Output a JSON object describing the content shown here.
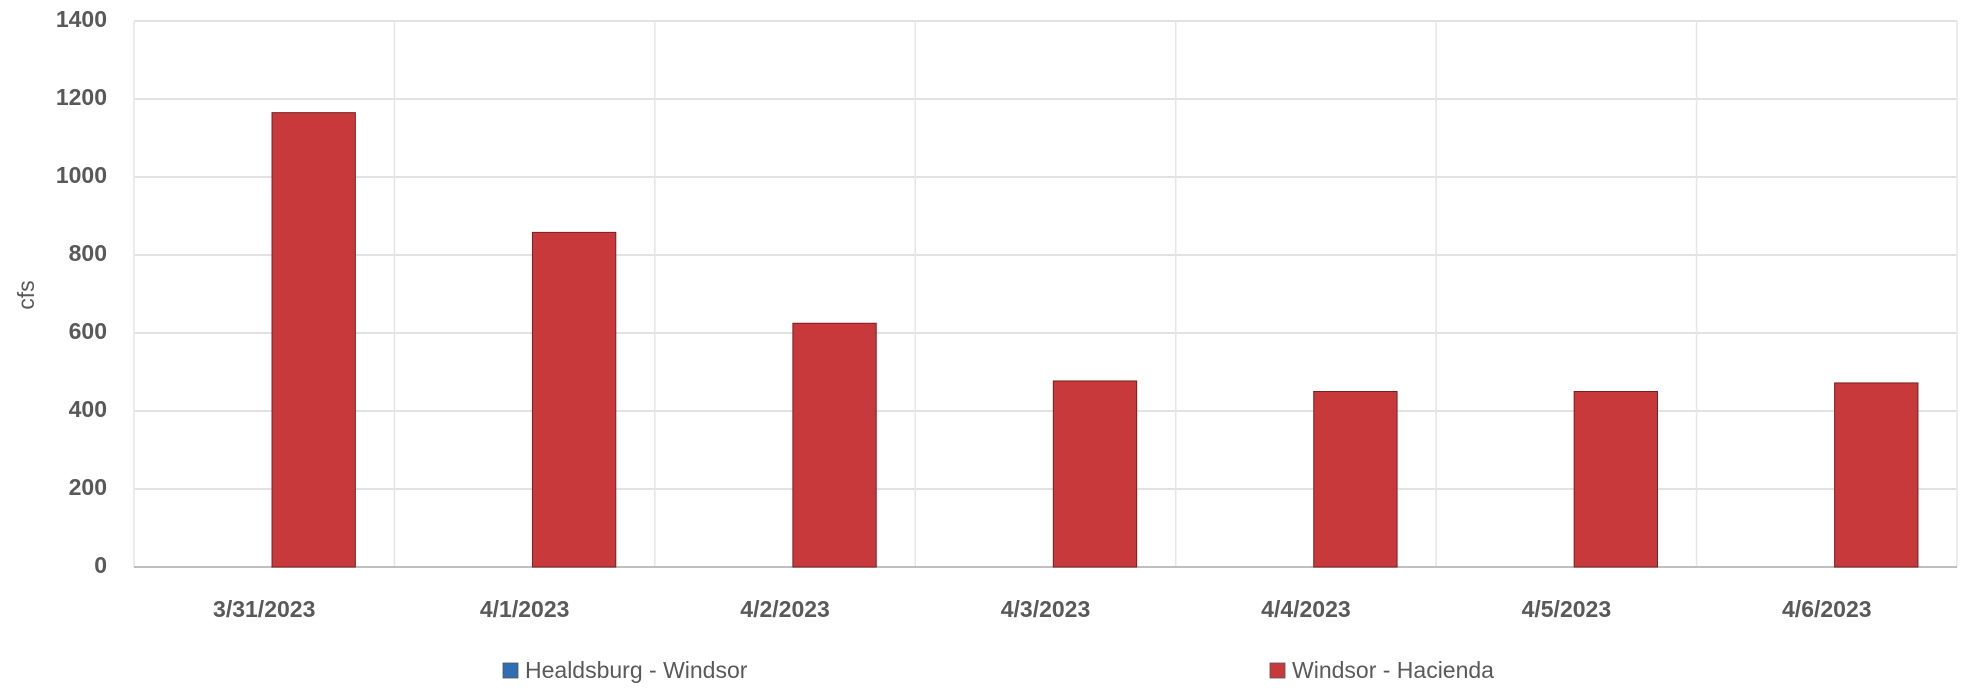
{
  "chart_data": {
    "type": "bar",
    "y_label": "cfs",
    "categories": [
      "3/31/2023",
      "4/1/2023",
      "4/2/2023",
      "4/3/2023",
      "4/4/2023",
      "4/5/2023",
      "4/6/2023"
    ],
    "series": [
      {
        "name": "Healdsburg - Windsor",
        "color": "#2f6db5",
        "values": [
          0,
          0,
          0,
          0,
          0,
          0,
          0
        ]
      },
      {
        "name": "Windsor - Hacienda",
        "color": "#c8393b",
        "values": [
          1165,
          858,
          625,
          477,
          450,
          450,
          472
        ]
      }
    ],
    "ylim": [
      0,
      1400
    ],
    "yticks": [
      0,
      200,
      400,
      600,
      800,
      1000,
      1200,
      1400
    ],
    "grid": true,
    "legend": "bottom"
  }
}
